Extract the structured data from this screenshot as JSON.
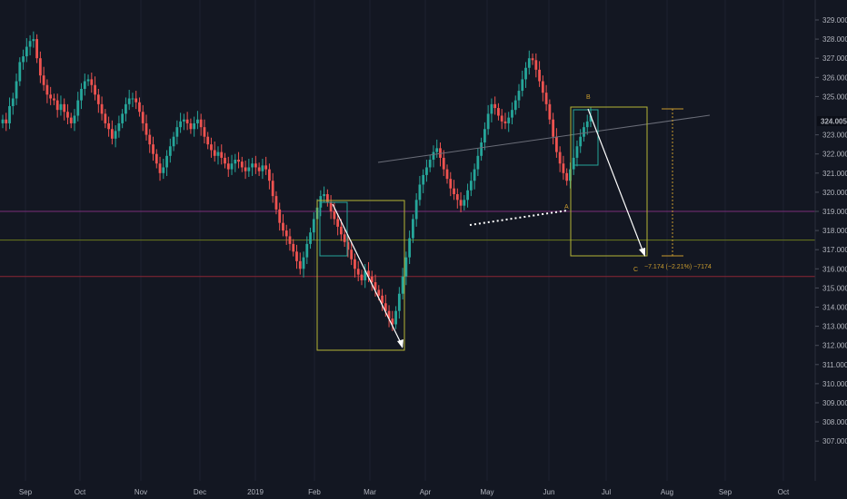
{
  "chart_data": {
    "type": "candlestick",
    "colors": {
      "background": "#131722",
      "up": "#26a69a",
      "down": "#ef5350",
      "axis_text": "#b2b5be",
      "price_label_bg": "#0b0e17",
      "last_price_text": "#ffffff",
      "pattern": "#b5b536",
      "arrow": "#ffffff",
      "purple_line": "#7b2f7b",
      "red_line": "#8b2635",
      "olive_line": "#6b7a1e",
      "trendline": "#6a6d78",
      "abc_label": "#c99b2e",
      "projection": "#c99b2e"
    },
    "x_axis": {
      "labels": [
        "Sep",
        "Oct",
        "Nov",
        "Dec",
        "2019",
        "Feb",
        "Mar",
        "Apr",
        "May",
        "Jun",
        "Jul",
        "Aug",
        "Sep",
        "Oct"
      ]
    },
    "y_axis": {
      "ylim": [
        306.7,
        329.6
      ],
      "ticks": [
        "329.000",
        "328.000",
        "327.000",
        "326.000",
        "325.000",
        "323.000",
        "322.000",
        "321.000",
        "320.000",
        "319.000",
        "318.000",
        "317.000",
        "316.000",
        "315.000",
        "314.000",
        "313.000",
        "312.000",
        "311.000",
        "310.000",
        "309.000",
        "308.000",
        "307.000"
      ],
      "last_price": "324.005"
    },
    "close": [
      323.8,
      323.6,
      324.5,
      324.9,
      325.8,
      326.8,
      327.1,
      327.6,
      327.9,
      328.0,
      327.0,
      326.1,
      325.6,
      325.1,
      324.9,
      324.8,
      324.3,
      324.6,
      324.2,
      323.9,
      323.6,
      324.0,
      324.8,
      325.4,
      325.8,
      325.9,
      325.6,
      325.1,
      324.6,
      324.1,
      323.6,
      323.3,
      322.8,
      323.2,
      323.6,
      324.1,
      324.6,
      324.9,
      324.9,
      324.7,
      324.2,
      323.6,
      323.0,
      322.5,
      322.0,
      321.5,
      321.0,
      321.3,
      321.9,
      322.4,
      322.9,
      323.4,
      323.7,
      323.8,
      323.6,
      323.3,
      323.6,
      323.8,
      323.4,
      322.9,
      322.5,
      322.2,
      321.9,
      322.1,
      321.8,
      321.5,
      321.2,
      321.5,
      321.7,
      321.6,
      321.3,
      321.1,
      321.3,
      321.5,
      321.3,
      321.1,
      321.4,
      321.2,
      320.6,
      319.8,
      319.1,
      318.4,
      318.0,
      317.7,
      317.3,
      316.9,
      316.4,
      316.0,
      316.6,
      317.3,
      317.9,
      318.6,
      319.2,
      319.8,
      319.9,
      319.5,
      319.0,
      318.6,
      318.2,
      317.8,
      317.4,
      317.0,
      316.5,
      316.0,
      315.7,
      315.4,
      315.9,
      315.6,
      315.3,
      314.9,
      314.6,
      314.2,
      313.8,
      313.4,
      313.1,
      313.8,
      314.7,
      315.6,
      316.6,
      317.6,
      318.6,
      319.6,
      320.4,
      320.9,
      321.3,
      321.7,
      322.1,
      322.3,
      321.8,
      321.2,
      320.7,
      320.2,
      319.9,
      319.6,
      319.3,
      319.6,
      320.1,
      320.6,
      321.2,
      321.9,
      322.6,
      323.3,
      324.1,
      324.6,
      324.4,
      324.0,
      323.7,
      323.6,
      323.9,
      324.3,
      324.8,
      325.3,
      325.9,
      326.5,
      327.0,
      326.9,
      326.4,
      325.8,
      325.2,
      324.6,
      323.8,
      322.9,
      322.1,
      321.5,
      321.0,
      320.6,
      321.2,
      321.8,
      322.4,
      322.9,
      323.4,
      323.7,
      324.0
    ]
  },
  "annotations": {
    "label_a": "A",
    "label_b": "B",
    "label_c": "C",
    "projection_text": "−7.174 (−2.21%) −7174"
  }
}
